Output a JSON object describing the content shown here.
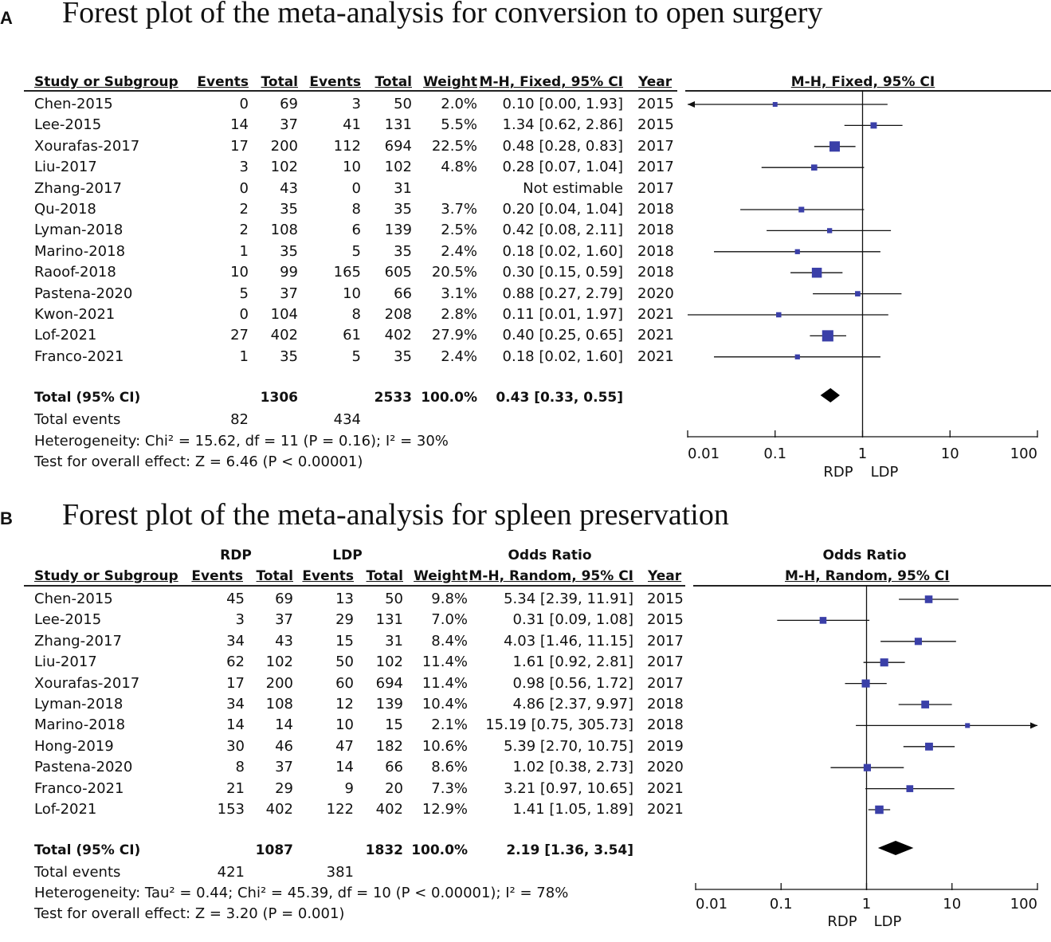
{
  "panels": [
    {
      "label": "A",
      "title": "Forest plot of the meta-analysis for conversion to open surgery",
      "group_header": null,
      "headers": {
        "study": "Study or Subgroup",
        "e1": "Events",
        "t1": "Total",
        "e2": "Events",
        "t2": "Total",
        "weight": "Weight",
        "ci": "M-H, Fixed, 95% CI",
        "year": "Year",
        "plot": "M-H, Fixed, 95% CI"
      },
      "rows": [
        {
          "study": "Chen-2015",
          "e1": "0",
          "t1": "69",
          "e2": "3",
          "t2": "50",
          "weight": "2.0%",
          "ci": "0.10 [0.00, 1.93]",
          "year": "2015"
        },
        {
          "study": "Lee-2015",
          "e1": "14",
          "t1": "37",
          "e2": "41",
          "t2": "131",
          "weight": "5.5%",
          "ci": "1.34 [0.62, 2.86]",
          "year": "2015"
        },
        {
          "study": "Xourafas-2017",
          "e1": "17",
          "t1": "200",
          "e2": "112",
          "t2": "694",
          "weight": "22.5%",
          "ci": "0.48 [0.28, 0.83]",
          "year": "2017"
        },
        {
          "study": "Liu-2017",
          "e1": "3",
          "t1": "102",
          "e2": "10",
          "t2": "102",
          "weight": "4.8%",
          "ci": "0.28 [0.07, 1.04]",
          "year": "2017"
        },
        {
          "study": "Zhang-2017",
          "e1": "0",
          "t1": "43",
          "e2": "0",
          "t2": "31",
          "weight": "",
          "ci": "Not estimable",
          "year": "2017"
        },
        {
          "study": "Qu-2018",
          "e1": "2",
          "t1": "35",
          "e2": "8",
          "t2": "35",
          "weight": "3.7%",
          "ci": "0.20 [0.04, 1.04]",
          "year": "2018"
        },
        {
          "study": "Lyman-2018",
          "e1": "2",
          "t1": "108",
          "e2": "6",
          "t2": "139",
          "weight": "2.5%",
          "ci": "0.42 [0.08, 2.11]",
          "year": "2018"
        },
        {
          "study": "Marino-2018",
          "e1": "1",
          "t1": "35",
          "e2": "5",
          "t2": "35",
          "weight": "2.4%",
          "ci": "0.18 [0.02, 1.60]",
          "year": "2018"
        },
        {
          "study": "Raoof-2018",
          "e1": "10",
          "t1": "99",
          "e2": "165",
          "t2": "605",
          "weight": "20.5%",
          "ci": "0.30 [0.15, 0.59]",
          "year": "2018"
        },
        {
          "study": "Pastena-2020",
          "e1": "5",
          "t1": "37",
          "e2": "10",
          "t2": "66",
          "weight": "3.1%",
          "ci": "0.88 [0.27, 2.79]",
          "year": "2020"
        },
        {
          "study": "Kwon-2021",
          "e1": "0",
          "t1": "104",
          "e2": "8",
          "t2": "208",
          "weight": "2.8%",
          "ci": "0.11 [0.01, 1.97]",
          "year": "2021"
        },
        {
          "study": "Lof-2021",
          "e1": "27",
          "t1": "402",
          "e2": "61",
          "t2": "402",
          "weight": "27.9%",
          "ci": "0.40 [0.25, 0.65]",
          "year": "2021"
        },
        {
          "study": "Franco-2021",
          "e1": "1",
          "t1": "35",
          "e2": "5",
          "t2": "35",
          "weight": "2.4%",
          "ci": "0.18 [0.02, 1.60]",
          "year": "2021"
        }
      ],
      "total": {
        "label": "Total (95% CI)",
        "t1": "1306",
        "t2": "2533",
        "weight": "100.0%",
        "ci": "0.43 [0.33, 0.55]"
      },
      "total_events": {
        "label": "Total events",
        "e1": "82",
        "e2": "434"
      },
      "heterogeneity": "Heterogeneity: Chi² = 15.62, df = 11 (P = 0.16); I² = 30%",
      "overall_effect": "Test for overall effect: Z = 6.46 (P < 0.00001)",
      "axis": {
        "ticks": [
          "0.01",
          "0.1",
          "1",
          "10",
          "100"
        ],
        "left_label": "RDP",
        "right_label": "LDP"
      }
    },
    {
      "label": "B",
      "title": "Forest plot of the meta-analysis for spleen preservation",
      "group_header": {
        "g1": "RDP",
        "g2": "LDP",
        "stat": "Odds Ratio",
        "plot": "Odds Ratio"
      },
      "headers": {
        "study": "Study or Subgroup",
        "e1": "Events",
        "t1": "Total",
        "e2": "Events",
        "t2": "Total",
        "weight": "Weight",
        "ci": "M-H, Random, 95% CI",
        "year": "Year",
        "plot": "M-H, Random, 95% CI"
      },
      "rows": [
        {
          "study": "Chen-2015",
          "e1": "45",
          "t1": "69",
          "e2": "13",
          "t2": "50",
          "weight": "9.8%",
          "ci": "5.34 [2.39, 11.91]",
          "year": "2015"
        },
        {
          "study": "Lee-2015",
          "e1": "3",
          "t1": "37",
          "e2": "29",
          "t2": "131",
          "weight": "7.0%",
          "ci": "0.31 [0.09, 1.08]",
          "year": "2015"
        },
        {
          "study": "Zhang-2017",
          "e1": "34",
          "t1": "43",
          "e2": "15",
          "t2": "31",
          "weight": "8.4%",
          "ci": "4.03 [1.46, 11.15]",
          "year": "2017"
        },
        {
          "study": "Liu-2017",
          "e1": "62",
          "t1": "102",
          "e2": "50",
          "t2": "102",
          "weight": "11.4%",
          "ci": "1.61 [0.92, 2.81]",
          "year": "2017"
        },
        {
          "study": "Xourafas-2017",
          "e1": "17",
          "t1": "200",
          "e2": "60",
          "t2": "694",
          "weight": "11.4%",
          "ci": "0.98 [0.56, 1.72]",
          "year": "2017"
        },
        {
          "study": "Lyman-2018",
          "e1": "34",
          "t1": "108",
          "e2": "12",
          "t2": "139",
          "weight": "10.4%",
          "ci": "4.86 [2.37, 9.97]",
          "year": "2018"
        },
        {
          "study": "Marino-2018",
          "e1": "14",
          "t1": "14",
          "e2": "10",
          "t2": "15",
          "weight": "2.1%",
          "ci": "15.19 [0.75, 305.73]",
          "year": "2018"
        },
        {
          "study": "Hong-2019",
          "e1": "30",
          "t1": "46",
          "e2": "47",
          "t2": "182",
          "weight": "10.6%",
          "ci": "5.39 [2.70, 10.75]",
          "year": "2019"
        },
        {
          "study": "Pastena-2020",
          "e1": "8",
          "t1": "37",
          "e2": "14",
          "t2": "66",
          "weight": "8.6%",
          "ci": "1.02 [0.38, 2.73]",
          "year": "2020"
        },
        {
          "study": "Franco-2021",
          "e1": "21",
          "t1": "29",
          "e2": "9",
          "t2": "20",
          "weight": "7.3%",
          "ci": "3.21 [0.97, 10.65]",
          "year": "2021"
        },
        {
          "study": "Lof-2021",
          "e1": "153",
          "t1": "402",
          "e2": "122",
          "t2": "402",
          "weight": "12.9%",
          "ci": "1.41 [1.05, 1.89]",
          "year": "2021"
        }
      ],
      "total": {
        "label": "Total (95% CI)",
        "t1": "1087",
        "t2": "1832",
        "weight": "100.0%",
        "ci": "2.19 [1.36, 3.54]"
      },
      "total_events": {
        "label": "Total events",
        "e1": "421",
        "e2": "381"
      },
      "heterogeneity": "Heterogeneity: Tau² = 0.44; Chi² = 45.39, df = 10 (P < 0.00001); I² = 78%",
      "overall_effect": "Test for overall effect: Z = 3.20 (P = 0.001)",
      "axis": {
        "ticks": [
          "0.01",
          "0.1",
          "1",
          "10",
          "100"
        ],
        "left_label": "RDP",
        "right_label": "LDP"
      }
    }
  ],
  "chart_data": [
    {
      "type": "forest",
      "title": "Forest plot of the meta-analysis for conversion to open surgery",
      "method": "M-H, Fixed, 95% CI",
      "scale": "log",
      "xlim": [
        0.01,
        100
      ],
      "studies": [
        {
          "name": "Chen-2015",
          "or": 0.1,
          "lo": 0.0,
          "hi": 1.93,
          "weight": 2.0
        },
        {
          "name": "Lee-2015",
          "or": 1.34,
          "lo": 0.62,
          "hi": 2.86,
          "weight": 5.5
        },
        {
          "name": "Xourafas-2017",
          "or": 0.48,
          "lo": 0.28,
          "hi": 0.83,
          "weight": 22.5
        },
        {
          "name": "Liu-2017",
          "or": 0.28,
          "lo": 0.07,
          "hi": 1.04,
          "weight": 4.8
        },
        {
          "name": "Zhang-2017",
          "or": null,
          "lo": null,
          "hi": null,
          "weight": null
        },
        {
          "name": "Qu-2018",
          "or": 0.2,
          "lo": 0.04,
          "hi": 1.04,
          "weight": 3.7
        },
        {
          "name": "Lyman-2018",
          "or": 0.42,
          "lo": 0.08,
          "hi": 2.11,
          "weight": 2.5
        },
        {
          "name": "Marino-2018",
          "or": 0.18,
          "lo": 0.02,
          "hi": 1.6,
          "weight": 2.4
        },
        {
          "name": "Raoof-2018",
          "or": 0.3,
          "lo": 0.15,
          "hi": 0.59,
          "weight": 20.5
        },
        {
          "name": "Pastena-2020",
          "or": 0.88,
          "lo": 0.27,
          "hi": 2.79,
          "weight": 3.1
        },
        {
          "name": "Kwon-2021",
          "or": 0.11,
          "lo": 0.01,
          "hi": 1.97,
          "weight": 2.8
        },
        {
          "name": "Lof-2021",
          "or": 0.4,
          "lo": 0.25,
          "hi": 0.65,
          "weight": 27.9
        },
        {
          "name": "Franco-2021",
          "or": 0.18,
          "lo": 0.02,
          "hi": 1.6,
          "weight": 2.4
        }
      ],
      "pooled": {
        "or": 0.43,
        "lo": 0.33,
        "hi": 0.55
      }
    },
    {
      "type": "forest",
      "title": "Forest plot of the meta-analysis for spleen preservation",
      "method": "M-H, Random, 95% CI",
      "scale": "log",
      "xlim": [
        0.01,
        100
      ],
      "studies": [
        {
          "name": "Chen-2015",
          "or": 5.34,
          "lo": 2.39,
          "hi": 11.91,
          "weight": 9.8
        },
        {
          "name": "Lee-2015",
          "or": 0.31,
          "lo": 0.09,
          "hi": 1.08,
          "weight": 7.0
        },
        {
          "name": "Zhang-2017",
          "or": 4.03,
          "lo": 1.46,
          "hi": 11.15,
          "weight": 8.4
        },
        {
          "name": "Liu-2017",
          "or": 1.61,
          "lo": 0.92,
          "hi": 2.81,
          "weight": 11.4
        },
        {
          "name": "Xourafas-2017",
          "or": 0.98,
          "lo": 0.56,
          "hi": 1.72,
          "weight": 11.4
        },
        {
          "name": "Lyman-2018",
          "or": 4.86,
          "lo": 2.37,
          "hi": 9.97,
          "weight": 10.4
        },
        {
          "name": "Marino-2018",
          "or": 15.19,
          "lo": 0.75,
          "hi": 305.73,
          "weight": 2.1
        },
        {
          "name": "Hong-2019",
          "or": 5.39,
          "lo": 2.7,
          "hi": 10.75,
          "weight": 10.6
        },
        {
          "name": "Pastena-2020",
          "or": 1.02,
          "lo": 0.38,
          "hi": 2.73,
          "weight": 8.6
        },
        {
          "name": "Franco-2021",
          "or": 3.21,
          "lo": 0.97,
          "hi": 10.65,
          "weight": 7.3
        },
        {
          "name": "Lof-2021",
          "or": 1.41,
          "lo": 1.05,
          "hi": 1.89,
          "weight": 12.9
        }
      ],
      "pooled": {
        "or": 2.19,
        "lo": 1.36,
        "hi": 3.54
      }
    }
  ],
  "colors": {
    "square": "#3a3fa8",
    "line": "#111111",
    "diamond": "#000000"
  }
}
